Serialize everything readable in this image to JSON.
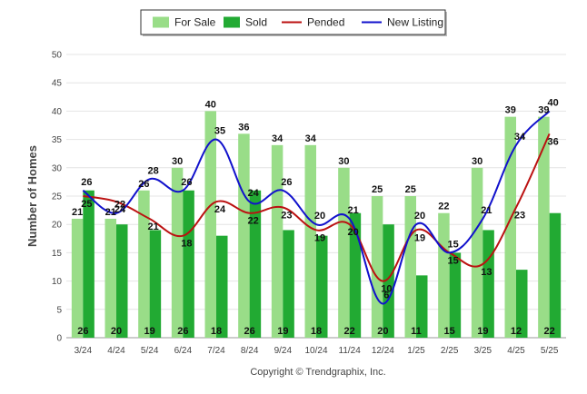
{
  "chart_data": {
    "type": "bar",
    "title": "",
    "xlabel": "",
    "ylabel": "Number of Homes",
    "ylim": [
      0,
      50
    ],
    "yticks": [
      0,
      5,
      10,
      15,
      20,
      25,
      30,
      35,
      40,
      45,
      50
    ],
    "grid": true,
    "legend_position": "top-center",
    "categories": [
      "3/24",
      "4/24",
      "5/24",
      "6/24",
      "7/24",
      "8/24",
      "9/24",
      "10/24",
      "11/24",
      "12/24",
      "1/25",
      "2/25",
      "3/25",
      "4/25",
      "5/25"
    ],
    "series": [
      {
        "name": "For Sale",
        "kind": "bar",
        "color": "#99dd88",
        "values": [
          21,
          21,
          26,
          30,
          40,
          36,
          34,
          34,
          30,
          25,
          25,
          22,
          30,
          39,
          39
        ]
      },
      {
        "name": "Sold",
        "kind": "bar",
        "color": "#22aa33",
        "values": [
          26,
          20,
          19,
          26,
          18,
          26,
          19,
          18,
          22,
          20,
          11,
          15,
          19,
          12,
          22
        ]
      },
      {
        "name": "Pended",
        "kind": "line",
        "color": "#bb1111",
        "values": [
          25,
          24,
          21,
          18,
          24,
          22,
          23,
          19,
          20,
          10,
          19,
          15,
          13,
          23,
          36
        ]
      },
      {
        "name": "New Listing",
        "kind": "line",
        "color": "#1111cc",
        "values": [
          26,
          22,
          28,
          26,
          35,
          24,
          26,
          20,
          21,
          6,
          20,
          15,
          21,
          34,
          40
        ]
      }
    ],
    "footer": "Copyright © Trendgraphix, Inc."
  }
}
